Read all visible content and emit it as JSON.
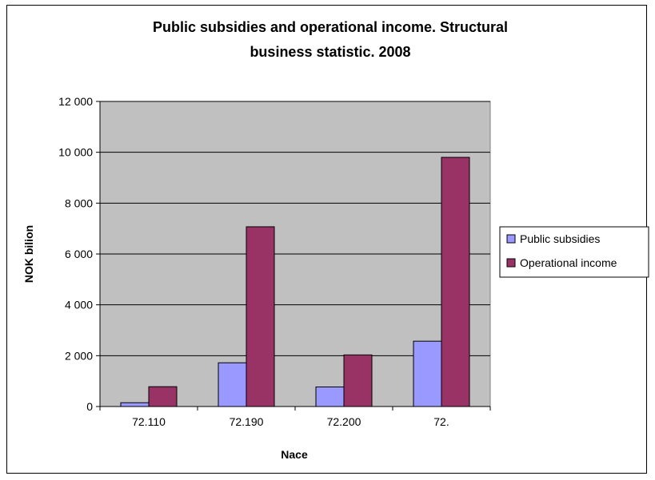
{
  "chart_data": {
    "type": "bar",
    "title_lines": [
      "Public subsidies and operational income. Structural",
      "business statistic. 2008"
    ],
    "xlabel": "Nace",
    "ylabel": "NOK bilion",
    "categories": [
      "72.110",
      "72.190",
      "72.200",
      "72."
    ],
    "series": [
      {
        "name": "Public subsidies",
        "color": "#9999ff",
        "values": [
          150,
          1720,
          770,
          2570
        ]
      },
      {
        "name": "Operational income",
        "color": "#993366",
        "values": [
          780,
          7070,
          2030,
          9800
        ]
      }
    ],
    "ylim": [
      0,
      12000
    ],
    "yticks": [
      0,
      2000,
      4000,
      6000,
      8000,
      10000,
      12000
    ],
    "ytick_labels": [
      "0",
      "2 000",
      "4 000",
      "6 000",
      "8 000",
      "10 000",
      "12 000"
    ],
    "plot_background": "#c0c0c0",
    "grid": true,
    "legend_position": "right"
  }
}
